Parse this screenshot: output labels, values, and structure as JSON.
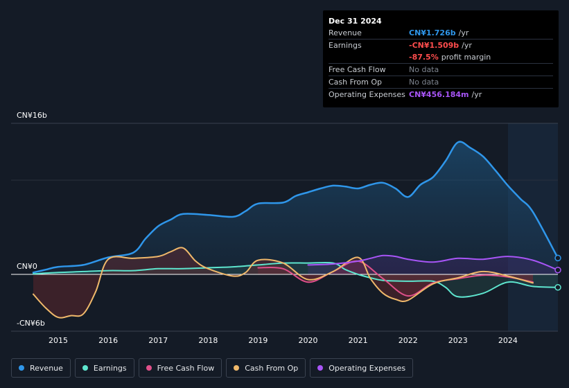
{
  "tooltip": {
    "date": "Dec 31 2024",
    "rows": [
      {
        "label": "Revenue",
        "value": "CN¥1.726b",
        "unit": "/yr"
      },
      {
        "label": "Earnings",
        "value": "-CN¥1.509b",
        "unit": "/yr"
      },
      {
        "label": "",
        "value": "-87.5%",
        "unit": "profit margin"
      },
      {
        "label": "Free Cash Flow",
        "value": "No data",
        "unit": ""
      },
      {
        "label": "Cash From Op",
        "value": "No data",
        "unit": ""
      },
      {
        "label": "Operating Expenses",
        "value": "CN¥456.184m",
        "unit": "/yr"
      }
    ]
  },
  "legend": [
    {
      "label": "Revenue",
      "color": "#2f96ea"
    },
    {
      "label": "Earnings",
      "color": "#5ee6cf"
    },
    {
      "label": "Free Cash Flow",
      "color": "#e0508a"
    },
    {
      "label": "Cash From Op",
      "color": "#f0b96b"
    },
    {
      "label": "Operating Expenses",
      "color": "#a855f7"
    }
  ],
  "chart_data": {
    "type": "area",
    "y_unit": "CN¥ billions",
    "ylim": [
      -6.6,
      16
    ],
    "xlim": [
      2014.5,
      2025.0
    ],
    "y_tick_labels": [
      "CN¥16b",
      "CN¥0",
      "-CN¥6b"
    ],
    "y_tick_values": [
      16,
      0,
      -6
    ],
    "x_tick_labels": [
      "2015",
      "2016",
      "2017",
      "2018",
      "2019",
      "2020",
      "2021",
      "2022",
      "2023",
      "2024"
    ],
    "x_tick_values": [
      2015,
      2016,
      2017,
      2018,
      2019,
      2020,
      2021,
      2022,
      2023,
      2024
    ],
    "forecast_start": 2024.0,
    "series": [
      {
        "name": "Revenue",
        "key": "revenue",
        "color": "#2f96ea",
        "x": [
          2014.5,
          2014.75,
          2015.0,
          2015.5,
          2016.0,
          2016.5,
          2016.75,
          2017.0,
          2017.25,
          2017.5,
          2018.0,
          2018.5,
          2018.75,
          2019.0,
          2019.5,
          2019.75,
          2020.0,
          2020.25,
          2020.5,
          2020.75,
          2021.0,
          2021.25,
          2021.5,
          2021.75,
          2022.0,
          2022.25,
          2022.5,
          2022.75,
          2023.0,
          2023.25,
          2023.5,
          2023.75,
          2024.0,
          2024.25,
          2024.5,
          2025.0
        ],
        "values": [
          0.2,
          0.5,
          0.8,
          1.0,
          1.8,
          2.3,
          3.8,
          5.1,
          5.8,
          6.4,
          6.3,
          6.1,
          6.7,
          7.5,
          7.6,
          8.3,
          8.7,
          9.1,
          9.4,
          9.3,
          9.1,
          9.5,
          9.7,
          9.1,
          8.2,
          9.5,
          10.3,
          12.0,
          14.0,
          13.4,
          12.5,
          11.0,
          9.4,
          8.0,
          6.6,
          1.73
        ]
      },
      {
        "name": "Earnings",
        "key": "earnings",
        "color": "#5ee6cf",
        "x": [
          2014.5,
          2015.0,
          2015.5,
          2016.0,
          2016.5,
          2017.0,
          2017.5,
          2018.0,
          2018.5,
          2019.0,
          2019.5,
          2020.0,
          2020.5,
          2020.75,
          2021.0,
          2021.25,
          2021.5,
          2022.0,
          2022.5,
          2022.75,
          2023.0,
          2023.5,
          2024.0,
          2024.5,
          2025.0
        ],
        "values": [
          0.05,
          0.2,
          0.3,
          0.4,
          0.4,
          0.6,
          0.6,
          0.7,
          0.8,
          1.0,
          1.2,
          1.2,
          1.2,
          0.5,
          0.0,
          -0.4,
          -0.7,
          -0.8,
          -0.8,
          -1.5,
          -2.6,
          -2.2,
          -0.9,
          -1.4,
          -1.51
        ]
      },
      {
        "name": "Free Cash Flow",
        "key": "fcf",
        "color": "#e0508a",
        "x": [
          2019.0,
          2019.5,
          2020.0,
          2020.5,
          2021.0,
          2021.5,
          2022.0,
          2022.5,
          2023.0,
          2023.5,
          2024.0,
          2024.5
        ],
        "values": [
          0.7,
          0.6,
          -0.9,
          0.3,
          1.4,
          -0.5,
          -2.5,
          -1.0,
          -0.5,
          -0.1,
          -0.3,
          -0.9
        ]
      },
      {
        "name": "Cash From Op",
        "key": "cfo",
        "color": "#f0b96b",
        "x": [
          2014.5,
          2014.75,
          2015.0,
          2015.25,
          2015.5,
          2015.75,
          2016.0,
          2016.5,
          2017.0,
          2017.25,
          2017.5,
          2017.75,
          2018.0,
          2018.5,
          2018.75,
          2019.0,
          2019.5,
          2020.0,
          2020.5,
          2021.0,
          2021.25,
          2021.5,
          2021.75,
          2022.0,
          2022.5,
          2023.0,
          2023.5,
          2024.0,
          2024.5
        ],
        "values": [
          -2.3,
          -3.9,
          -5.0,
          -4.8,
          -4.6,
          -2.0,
          1.6,
          1.7,
          1.9,
          2.4,
          2.8,
          1.4,
          0.6,
          -0.2,
          0.2,
          1.5,
          1.2,
          -0.6,
          0.3,
          1.8,
          -0.5,
          -2.2,
          -2.9,
          -3.0,
          -1.1,
          -0.4,
          0.3,
          -0.2,
          -1.0
        ]
      },
      {
        "name": "Operating Expenses",
        "key": "opex",
        "color": "#a855f7",
        "x": [
          2020.0,
          2020.5,
          2021.0,
          2021.25,
          2021.5,
          2021.75,
          2022.0,
          2022.5,
          2023.0,
          2023.5,
          2024.0,
          2024.5,
          2025.0
        ],
        "values": [
          1.0,
          1.1,
          1.4,
          1.7,
          2.0,
          1.9,
          1.6,
          1.3,
          1.7,
          1.6,
          1.9,
          1.5,
          0.46
        ]
      }
    ]
  }
}
